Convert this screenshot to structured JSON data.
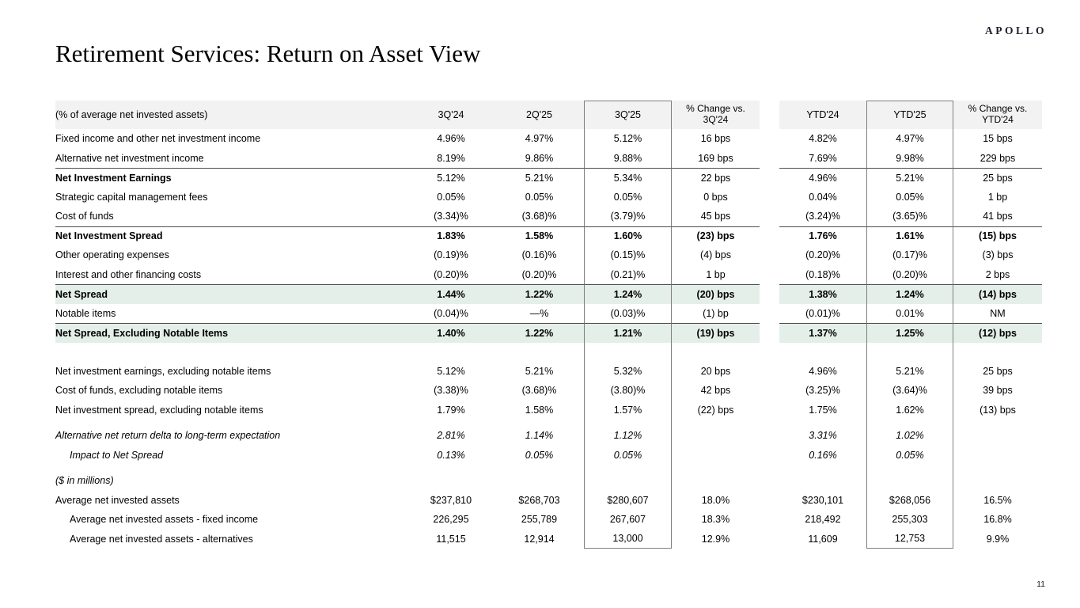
{
  "brand": {
    "logo": "APOLLO"
  },
  "page": {
    "title": "Retirement Services: Return on Asset View",
    "page_number": "11"
  },
  "theme": {
    "header_bg": "#f2f2f2",
    "highlight_row_bg": "#e4efe9",
    "box_border": "#7f7f7f",
    "section_line": "#4d4d4d"
  },
  "table": {
    "header": {
      "label": "(% of average net invested assets)",
      "columns": [
        "3Q'24",
        "2Q'25",
        "3Q'25",
        "% Change vs.\n3Q'24",
        "YTD'24",
        "YTD'25",
        "% Change vs.\nYTD'24"
      ]
    },
    "rows": [
      {
        "label": "Fixed income and other net investment income",
        "values": [
          "4.96%",
          "4.97%",
          "5.12%",
          "16 bps",
          "4.82%",
          "4.97%",
          "15 bps"
        ]
      },
      {
        "label": "Alternative net investment income",
        "values": [
          "8.19%",
          "9.86%",
          "9.88%",
          "169 bps",
          "7.69%",
          "9.98%",
          "229 bps"
        ]
      },
      {
        "label": "Net Investment Earnings",
        "bold_label": true,
        "line": true,
        "values": [
          "5.12%",
          "5.21%",
          "5.34%",
          "22 bps",
          "4.96%",
          "5.21%",
          "25 bps"
        ]
      },
      {
        "label": "Strategic capital management fees",
        "values": [
          "0.05%",
          "0.05%",
          "0.05%",
          "0 bps",
          "0.04%",
          "0.05%",
          "1 bp"
        ]
      },
      {
        "label": "Cost of funds",
        "values": [
          "(3.34)%",
          "(3.68)%",
          "(3.79)%",
          "45 bps",
          "(3.24)%",
          "(3.65)%",
          "41 bps"
        ]
      },
      {
        "label": "Net Investment Spread",
        "bold": true,
        "line": true,
        "values": [
          "1.83%",
          "1.58%",
          "1.60%",
          "(23) bps",
          "1.76%",
          "1.61%",
          "(15) bps"
        ]
      },
      {
        "label": "Other operating expenses",
        "values": [
          "(0.19)%",
          "(0.16)%",
          "(0.15)%",
          "(4) bps",
          "(0.20)%",
          "(0.17)%",
          "(3) bps"
        ]
      },
      {
        "label": "Interest and other financing costs",
        "values": [
          "(0.20)%",
          "(0.20)%",
          "(0.21)%",
          "1 bp",
          "(0.18)%",
          "(0.20)%",
          "2 bps"
        ]
      },
      {
        "label": "Net Spread",
        "bold": true,
        "green": true,
        "line": true,
        "values": [
          "1.44%",
          "1.22%",
          "1.24%",
          "(20) bps",
          "1.38%",
          "1.24%",
          "(14) bps"
        ]
      },
      {
        "label": "Notable items",
        "values": [
          "(0.04)%",
          "—%",
          "(0.03)%",
          "(1) bp",
          "(0.01)%",
          "0.01%",
          "NM"
        ]
      },
      {
        "label": "Net Spread, Excluding Notable Items",
        "bold": true,
        "green": true,
        "line": true,
        "values": [
          "1.40%",
          "1.22%",
          "1.21%",
          "(19) bps",
          "1.37%",
          "1.25%",
          "(12) bps"
        ]
      },
      {
        "type": "spacer",
        "height": 24
      },
      {
        "label": "Net investment earnings, excluding notable items",
        "values": [
          "5.12%",
          "5.21%",
          "5.32%",
          "20 bps",
          "4.96%",
          "5.21%",
          "25 bps"
        ]
      },
      {
        "label": "Cost of funds, excluding notable items",
        "values": [
          "(3.38)%",
          "(3.68)%",
          "(3.80)%",
          "42 bps",
          "(3.25)%",
          "(3.64)%",
          "39 bps"
        ]
      },
      {
        "label": "Net investment spread, excluding notable items",
        "values": [
          "1.79%",
          "1.58%",
          "1.57%",
          "(22) bps",
          "1.75%",
          "1.62%",
          "(13) bps"
        ]
      },
      {
        "type": "spacer",
        "height": 8
      },
      {
        "label": "Alternative net return delta to long-term expectation",
        "italic": true,
        "values": [
          "2.81%",
          "1.14%",
          "1.12%",
          "",
          "3.31%",
          "1.02%",
          ""
        ]
      },
      {
        "label": "Impact to Net Spread",
        "italic": true,
        "indent": true,
        "values": [
          "0.13%",
          "0.05%",
          "0.05%",
          "",
          "0.16%",
          "0.05%",
          ""
        ]
      },
      {
        "type": "spacer",
        "height": 8
      },
      {
        "label": "($ in millions)",
        "italic": true,
        "values": [
          "",
          "",
          "",
          "",
          "",
          "",
          ""
        ]
      },
      {
        "label": "Average net invested assets",
        "values": [
          "$237,810",
          "$268,703",
          "$280,607",
          "18.0%",
          "$230,101",
          "$268,056",
          "16.5%"
        ]
      },
      {
        "label": "Average net invested assets - fixed income",
        "indent": true,
        "values": [
          "226,295",
          "255,789",
          "267,607",
          "18.3%",
          "218,492",
          "255,303",
          "16.8%"
        ]
      },
      {
        "label": "Average net invested assets - alternatives",
        "indent": true,
        "box_bottom": true,
        "values": [
          "11,515",
          "12,914",
          "13,000",
          "12.9%",
          "11,609",
          "12,753",
          "9.9%"
        ]
      }
    ]
  }
}
